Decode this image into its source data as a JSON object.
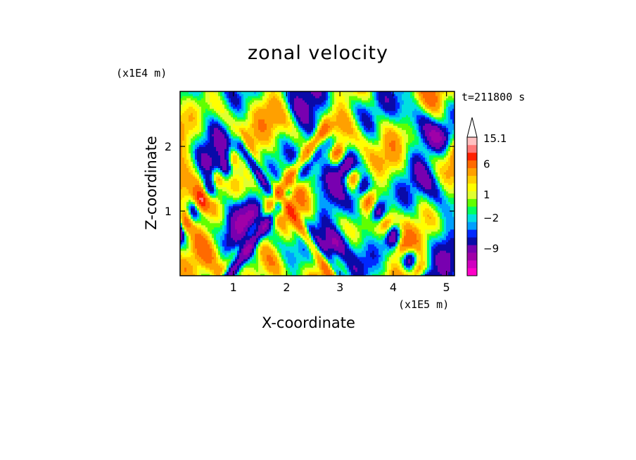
{
  "chart_data": {
    "type": "heatmap",
    "title": "zonal velocity",
    "xlabel": "X-coordinate",
    "ylabel": "Z-coordinate",
    "x_scale_label": "(x1E5 m)",
    "y_scale_label": "(x1E4 m)",
    "time_label": "t=211800 s",
    "xlim": [
      0,
      5.15
    ],
    "ylim": [
      0,
      2.85
    ],
    "x_ticks": [
      "1",
      "2",
      "3",
      "4",
      "5"
    ],
    "y_ticks": [
      "1",
      "2"
    ],
    "colorbar": {
      "labels": [
        "15.1",
        "6",
        "1",
        "−2",
        "−9"
      ],
      "label_values": [
        15.1,
        6,
        1,
        -2,
        -9
      ],
      "levels": [
        -18,
        -15,
        -12,
        -9,
        -6,
        -4,
        -3,
        -2,
        -1,
        0,
        1,
        2,
        3,
        4,
        6,
        9,
        12,
        15.1
      ],
      "colors": [
        "#ff00c8",
        "#d000c0",
        "#a000a8",
        "#7800b0",
        "#0a0aa8",
        "#0028ff",
        "#00a0ff",
        "#00e0e0",
        "#00ff60",
        "#60ff00",
        "#e0ff30",
        "#ffff00",
        "#ffd000",
        "#ffa000",
        "#ff6a00",
        "#ff2000",
        "#ff7878",
        "#ffc0c0"
      ],
      "extend": "max"
    },
    "field_note": "Contour-filled zonal velocity field; values mostly between -9 and 9, positive V-shaped bands near x=1.1 and x=2.7"
  }
}
